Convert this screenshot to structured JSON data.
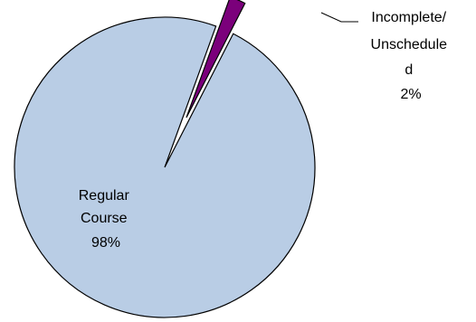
{
  "chart_data": {
    "type": "pie",
    "slices": [
      {
        "name": "Regular Course",
        "label_lines": [
          "Regular",
          "Course"
        ],
        "value": 98,
        "percent_label": "98%",
        "color": "#b9cde5"
      },
      {
        "name": "Incomplete/Unscheduled",
        "label_lines": [
          "Incomplete/",
          "Unschedule",
          "d"
        ],
        "value": 2,
        "percent_label": "2%",
        "color": "#7b007b",
        "exploded": true
      }
    ],
    "legend": "none"
  }
}
